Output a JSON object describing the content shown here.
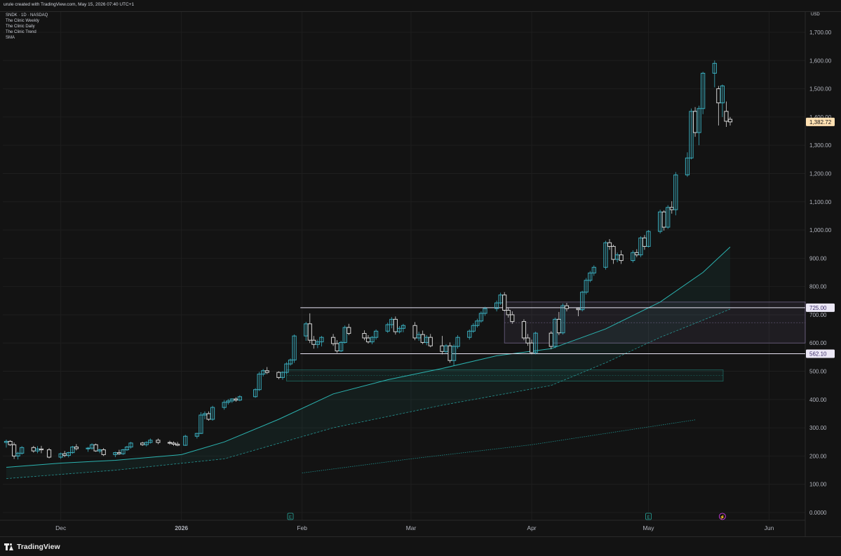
{
  "header": {
    "created_by": "urule created with TradingView.com, May 15, 2026 07:40 UTC+1"
  },
  "legend": {
    "symbol": "SNDK · 1D · NASDAQ",
    "indicators": [
      "The Clinic Weekly",
      "The Clinic Daily",
      "The Clinic Trend",
      "SMA"
    ]
  },
  "price_axis": {
    "currency": "USD",
    "labels": [
      "1,700.00",
      "1,600.00",
      "1,500.00",
      "1,400.00",
      "1,300.00",
      "1,200.00",
      "1,100.00",
      "1,000.00",
      "900.00",
      "800.00",
      "700.00",
      "600.00",
      "500.00",
      "400.00",
      "300.00",
      "200.00",
      "100.00",
      "0.0000"
    ]
  },
  "price_tags": {
    "last": "1,382.72",
    "resistance": "725.00",
    "support": "562.10"
  },
  "time_axis": {
    "labels": [
      "Dec",
      "2026",
      "Feb",
      "Mar",
      "Apr",
      "May",
      "Jun"
    ]
  },
  "event_markers": [
    "E",
    "E",
    "⚡"
  ],
  "footer": {
    "brand": "TradingView"
  },
  "colors": {
    "background": "#131313",
    "up_candle": "#3aaebf",
    "down_candle": "#d7d7d7",
    "sma_fast": "#2bb3b0",
    "sma_slow": "#1f8f8c",
    "zone_purple": "#b39ddb",
    "zone_teal": "#26a69a",
    "last_price_tag": "#ffe0b2"
  },
  "chart_data": {
    "type": "candlestick",
    "symbol": "SNDK",
    "interval": "1D",
    "x_range": [
      "2025-11-17",
      "2026-06-05"
    ],
    "ylim": [
      0,
      1750
    ],
    "y_scale": "linear",
    "grid": true,
    "candles": [
      {
        "date": "2025-11-17",
        "o": 248,
        "h": 258,
        "l": 230,
        "c": 252
      },
      {
        "date": "2025-11-18",
        "o": 252,
        "h": 256,
        "l": 236,
        "c": 240
      },
      {
        "date": "2025-11-19",
        "o": 240,
        "h": 248,
        "l": 190,
        "c": 200
      },
      {
        "date": "2025-11-20",
        "o": 200,
        "h": 215,
        "l": 188,
        "c": 210
      },
      {
        "date": "2025-11-21",
        "o": 210,
        "h": 235,
        "l": 205,
        "c": 230
      },
      {
        "date": "2025-11-24",
        "o": 230,
        "h": 236,
        "l": 212,
        "c": 218
      },
      {
        "date": "2025-11-25",
        "o": 218,
        "h": 235,
        "l": 210,
        "c": 225
      },
      {
        "date": "2025-11-26",
        "o": 225,
        "h": 236,
        "l": 210,
        "c": 222
      },
      {
        "date": "2025-11-28",
        "o": 222,
        "h": 228,
        "l": 192,
        "c": 196
      },
      {
        "date": "2025-12-01",
        "o": 196,
        "h": 212,
        "l": 190,
        "c": 208
      },
      {
        "date": "2025-12-02",
        "o": 208,
        "h": 218,
        "l": 196,
        "c": 202
      },
      {
        "date": "2025-12-03",
        "o": 202,
        "h": 215,
        "l": 195,
        "c": 212
      },
      {
        "date": "2025-12-04",
        "o": 212,
        "h": 236,
        "l": 208,
        "c": 232
      },
      {
        "date": "2025-12-05",
        "o": 232,
        "h": 242,
        "l": 220,
        "c": 226
      },
      {
        "date": "2025-12-08",
        "o": 226,
        "h": 232,
        "l": 215,
        "c": 228
      },
      {
        "date": "2025-12-09",
        "o": 228,
        "h": 245,
        "l": 222,
        "c": 240
      },
      {
        "date": "2025-12-10",
        "o": 240,
        "h": 244,
        "l": 215,
        "c": 218
      },
      {
        "date": "2025-12-11",
        "o": 218,
        "h": 226,
        "l": 210,
        "c": 222
      },
      {
        "date": "2025-12-12",
        "o": 222,
        "h": 228,
        "l": 200,
        "c": 205
      },
      {
        "date": "2025-12-15",
        "o": 205,
        "h": 215,
        "l": 196,
        "c": 212
      },
      {
        "date": "2025-12-16",
        "o": 212,
        "h": 222,
        "l": 204,
        "c": 208
      },
      {
        "date": "2025-12-17",
        "o": 208,
        "h": 225,
        "l": 204,
        "c": 222
      },
      {
        "date": "2025-12-18",
        "o": 222,
        "h": 236,
        "l": 218,
        "c": 232
      },
      {
        "date": "2025-12-19",
        "o": 232,
        "h": 250,
        "l": 226,
        "c": 246
      },
      {
        "date": "2025-12-22",
        "o": 246,
        "h": 250,
        "l": 236,
        "c": 240
      },
      {
        "date": "2025-12-23",
        "o": 240,
        "h": 252,
        "l": 234,
        "c": 248
      },
      {
        "date": "2025-12-24",
        "o": 248,
        "h": 262,
        "l": 244,
        "c": 256
      },
      {
        "date": "2025-12-26",
        "o": 256,
        "h": 262,
        "l": 242,
        "c": 248
      },
      {
        "date": "2025-12-29",
        "o": 248,
        "h": 254,
        "l": 240,
        "c": 246
      },
      {
        "date": "2025-12-30",
        "o": 246,
        "h": 252,
        "l": 236,
        "c": 242
      },
      {
        "date": "2025-12-31",
        "o": 242,
        "h": 250,
        "l": 235,
        "c": 238
      },
      {
        "date": "2026-01-02",
        "o": 238,
        "h": 275,
        "l": 236,
        "c": 270
      },
      {
        "date": "2026-01-05",
        "o": 270,
        "h": 282,
        "l": 262,
        "c": 280
      },
      {
        "date": "2026-01-06",
        "o": 280,
        "h": 355,
        "l": 278,
        "c": 345
      },
      {
        "date": "2026-01-07",
        "o": 345,
        "h": 358,
        "l": 330,
        "c": 350
      },
      {
        "date": "2026-01-08",
        "o": 350,
        "h": 358,
        "l": 325,
        "c": 330
      },
      {
        "date": "2026-01-09",
        "o": 330,
        "h": 378,
        "l": 325,
        "c": 372
      },
      {
        "date": "2026-01-12",
        "o": 372,
        "h": 398,
        "l": 364,
        "c": 390
      },
      {
        "date": "2026-01-13",
        "o": 390,
        "h": 402,
        "l": 382,
        "c": 395
      },
      {
        "date": "2026-01-14",
        "o": 395,
        "h": 404,
        "l": 388,
        "c": 402
      },
      {
        "date": "2026-01-15",
        "o": 402,
        "h": 408,
        "l": 392,
        "c": 398
      },
      {
        "date": "2026-01-16",
        "o": 398,
        "h": 415,
        "l": 394,
        "c": 410
      },
      {
        "date": "2026-01-20",
        "o": 410,
        "h": 440,
        "l": 406,
        "c": 435
      },
      {
        "date": "2026-01-21",
        "o": 435,
        "h": 498,
        "l": 430,
        "c": 490
      },
      {
        "date": "2026-01-22",
        "o": 490,
        "h": 508,
        "l": 482,
        "c": 502
      },
      {
        "date": "2026-01-23",
        "o": 502,
        "h": 515,
        "l": 490,
        "c": 496
      },
      {
        "date": "2026-01-26",
        "o": 496,
        "h": 500,
        "l": 472,
        "c": 478
      },
      {
        "date": "2026-01-27",
        "o": 478,
        "h": 500,
        "l": 470,
        "c": 496
      },
      {
        "date": "2026-01-28",
        "o": 496,
        "h": 532,
        "l": 490,
        "c": 526
      },
      {
        "date": "2026-01-29",
        "o": 526,
        "h": 545,
        "l": 520,
        "c": 540
      },
      {
        "date": "2026-01-30",
        "o": 540,
        "h": 630,
        "l": 530,
        "c": 625
      },
      {
        "date": "2026-02-02",
        "o": 625,
        "h": 675,
        "l": 608,
        "c": 668
      },
      {
        "date": "2026-02-03",
        "o": 668,
        "h": 705,
        "l": 600,
        "c": 610
      },
      {
        "date": "2026-02-04",
        "o": 610,
        "h": 625,
        "l": 580,
        "c": 595
      },
      {
        "date": "2026-02-05",
        "o": 595,
        "h": 612,
        "l": 582,
        "c": 604
      },
      {
        "date": "2026-02-06",
        "o": 604,
        "h": 625,
        "l": 588,
        "c": 620
      },
      {
        "date": "2026-02-09",
        "o": 620,
        "h": 632,
        "l": 590,
        "c": 598
      },
      {
        "date": "2026-02-10",
        "o": 598,
        "h": 610,
        "l": 565,
        "c": 572
      },
      {
        "date": "2026-02-11",
        "o": 572,
        "h": 608,
        "l": 568,
        "c": 602
      },
      {
        "date": "2026-02-12",
        "o": 602,
        "h": 662,
        "l": 598,
        "c": 655
      },
      {
        "date": "2026-02-13",
        "o": 655,
        "h": 668,
        "l": 628,
        "c": 634
      },
      {
        "date": "2026-02-17",
        "o": 634,
        "h": 645,
        "l": 610,
        "c": 618
      },
      {
        "date": "2026-02-18",
        "o": 618,
        "h": 628,
        "l": 598,
        "c": 604
      },
      {
        "date": "2026-02-19",
        "o": 604,
        "h": 625,
        "l": 596,
        "c": 620
      },
      {
        "date": "2026-02-20",
        "o": 620,
        "h": 648,
        "l": 612,
        "c": 642
      },
      {
        "date": "2026-02-23",
        "o": 642,
        "h": 672,
        "l": 636,
        "c": 665
      },
      {
        "date": "2026-02-24",
        "o": 665,
        "h": 692,
        "l": 652,
        "c": 684
      },
      {
        "date": "2026-02-25",
        "o": 684,
        "h": 694,
        "l": 630,
        "c": 640
      },
      {
        "date": "2026-02-26",
        "o": 640,
        "h": 660,
        "l": 634,
        "c": 652
      },
      {
        "date": "2026-02-27",
        "o": 652,
        "h": 668,
        "l": 638,
        "c": 662
      },
      {
        "date": "2026-03-02",
        "o": 662,
        "h": 674,
        "l": 610,
        "c": 618
      },
      {
        "date": "2026-03-03",
        "o": 618,
        "h": 640,
        "l": 608,
        "c": 630
      },
      {
        "date": "2026-03-04",
        "o": 630,
        "h": 644,
        "l": 596,
        "c": 602
      },
      {
        "date": "2026-03-05",
        "o": 602,
        "h": 628,
        "l": 592,
        "c": 620
      },
      {
        "date": "2026-03-06",
        "o": 620,
        "h": 632,
        "l": 585,
        "c": 590
      },
      {
        "date": "2026-03-09",
        "o": 590,
        "h": 625,
        "l": 560,
        "c": 570
      },
      {
        "date": "2026-03-10",
        "o": 570,
        "h": 596,
        "l": 562,
        "c": 590
      },
      {
        "date": "2026-03-11",
        "o": 590,
        "h": 602,
        "l": 530,
        "c": 538
      },
      {
        "date": "2026-03-12",
        "o": 538,
        "h": 595,
        "l": 520,
        "c": 588
      },
      {
        "date": "2026-03-13",
        "o": 588,
        "h": 628,
        "l": 580,
        "c": 620
      },
      {
        "date": "2026-03-16",
        "o": 620,
        "h": 648,
        "l": 612,
        "c": 642
      },
      {
        "date": "2026-03-17",
        "o": 642,
        "h": 670,
        "l": 636,
        "c": 662
      },
      {
        "date": "2026-03-18",
        "o": 662,
        "h": 686,
        "l": 655,
        "c": 678
      },
      {
        "date": "2026-03-19",
        "o": 678,
        "h": 712,
        "l": 672,
        "c": 705
      },
      {
        "date": "2026-03-20",
        "o": 705,
        "h": 728,
        "l": 696,
        "c": 722
      },
      {
        "date": "2026-03-23",
        "o": 722,
        "h": 750,
        "l": 712,
        "c": 742
      },
      {
        "date": "2026-03-24",
        "o": 742,
        "h": 778,
        "l": 735,
        "c": 770
      },
      {
        "date": "2026-03-25",
        "o": 770,
        "h": 780,
        "l": 712,
        "c": 716
      },
      {
        "date": "2026-03-26",
        "o": 716,
        "h": 726,
        "l": 690,
        "c": 700
      },
      {
        "date": "2026-03-27",
        "o": 700,
        "h": 712,
        "l": 668,
        "c": 676
      },
      {
        "date": "2026-03-30",
        "o": 676,
        "h": 684,
        "l": 610,
        "c": 618
      },
      {
        "date": "2026-03-31",
        "o": 618,
        "h": 632,
        "l": 590,
        "c": 600
      },
      {
        "date": "2026-04-01",
        "o": 600,
        "h": 612,
        "l": 560,
        "c": 566
      },
      {
        "date": "2026-04-02",
        "o": 566,
        "h": 640,
        "l": 560,
        "c": 635
      },
      {
        "date": "2026-04-06",
        "o": 635,
        "h": 642,
        "l": 578,
        "c": 588
      },
      {
        "date": "2026-04-07",
        "o": 588,
        "h": 690,
        "l": 582,
        "c": 684
      },
      {
        "date": "2026-04-08",
        "o": 684,
        "h": 710,
        "l": 628,
        "c": 636
      },
      {
        "date": "2026-04-09",
        "o": 636,
        "h": 740,
        "l": 630,
        "c": 732
      },
      {
        "date": "2026-04-10",
        "o": 732,
        "h": 742,
        "l": 712,
        "c": 722
      },
      {
        "date": "2026-04-13",
        "o": 722,
        "h": 726,
        "l": 695,
        "c": 718
      },
      {
        "date": "2026-04-14",
        "o": 718,
        "h": 785,
        "l": 712,
        "c": 780
      },
      {
        "date": "2026-04-15",
        "o": 780,
        "h": 830,
        "l": 772,
        "c": 822
      },
      {
        "date": "2026-04-16",
        "o": 822,
        "h": 855,
        "l": 815,
        "c": 848
      },
      {
        "date": "2026-04-17",
        "o": 848,
        "h": 875,
        "l": 838,
        "c": 868
      },
      {
        "date": "2026-04-20",
        "o": 868,
        "h": 962,
        "l": 860,
        "c": 955
      },
      {
        "date": "2026-04-21",
        "o": 955,
        "h": 968,
        "l": 930,
        "c": 942
      },
      {
        "date": "2026-04-22",
        "o": 942,
        "h": 948,
        "l": 880,
        "c": 896
      },
      {
        "date": "2026-04-23",
        "o": 896,
        "h": 920,
        "l": 886,
        "c": 912
      },
      {
        "date": "2026-04-24",
        "o": 912,
        "h": 928,
        "l": 880,
        "c": 892
      },
      {
        "date": "2026-04-27",
        "o": 892,
        "h": 928,
        "l": 885,
        "c": 920
      },
      {
        "date": "2026-04-28",
        "o": 920,
        "h": 932,
        "l": 904,
        "c": 912
      },
      {
        "date": "2026-04-29",
        "o": 912,
        "h": 978,
        "l": 904,
        "c": 972
      },
      {
        "date": "2026-04-30",
        "o": 972,
        "h": 982,
        "l": 930,
        "c": 942
      },
      {
        "date": "2026-05-01",
        "o": 942,
        "h": 1000,
        "l": 938,
        "c": 995
      },
      {
        "date": "2026-05-04",
        "o": 995,
        "h": 1072,
        "l": 988,
        "c": 1064
      },
      {
        "date": "2026-05-05",
        "o": 1064,
        "h": 1070,
        "l": 998,
        "c": 1010
      },
      {
        "date": "2026-05-06",
        "o": 1010,
        "h": 1088,
        "l": 1004,
        "c": 1080
      },
      {
        "date": "2026-05-07",
        "o": 1080,
        "h": 1102,
        "l": 1058,
        "c": 1072
      },
      {
        "date": "2026-05-08",
        "o": 1072,
        "h": 1205,
        "l": 1052,
        "c": 1195
      },
      {
        "date": "2026-05-11",
        "o": 1195,
        "h": 1275,
        "l": 1188,
        "c": 1255
      },
      {
        "date": "2026-05-12",
        "o": 1255,
        "h": 1430,
        "l": 1250,
        "c": 1420
      },
      {
        "date": "2026-05-13",
        "o": 1420,
        "h": 1435,
        "l": 1330,
        "c": 1345
      },
      {
        "date": "2026-05-14",
        "o": 1345,
        "h": 1440,
        "l": 1300,
        "c": 1430
      },
      {
        "date": "2026-05-15",
        "o": 1430,
        "h": 1560,
        "l": 1410,
        "c": 1555
      },
      {
        "date": "2026-05-18",
        "o": 1555,
        "h": 1600,
        "l": 1505,
        "c": 1590
      },
      {
        "date": "2026-05-19",
        "o": 1500,
        "h": 1510,
        "l": 1370,
        "c": 1450
      },
      {
        "date": "2026-05-20",
        "o": 1450,
        "h": 1515,
        "l": 1400,
        "c": 1510
      },
      {
        "date": "2026-05-21",
        "o": 1420,
        "h": 1455,
        "l": 1365,
        "c": 1385
      },
      {
        "date": "2026-05-22",
        "o": 1392,
        "h": 1400,
        "l": 1370,
        "c": 1382.72
      }
    ],
    "sma_fast": [
      {
        "date": "2025-11-17",
        "v": 160
      },
      {
        "date": "2025-12-01",
        "v": 175
      },
      {
        "date": "2025-12-15",
        "v": 185
      },
      {
        "date": "2026-01-01",
        "v": 205
      },
      {
        "date": "2026-01-12",
        "v": 250
      },
      {
        "date": "2026-01-26",
        "v": 330
      },
      {
        "date": "2026-02-09",
        "v": 420
      },
      {
        "date": "2026-02-23",
        "v": 470
      },
      {
        "date": "2026-03-09",
        "v": 510
      },
      {
        "date": "2026-03-23",
        "v": 555
      },
      {
        "date": "2026-04-06",
        "v": 580
      },
      {
        "date": "2026-04-20",
        "v": 650
      },
      {
        "date": "2026-05-04",
        "v": 745
      },
      {
        "date": "2026-05-15",
        "v": 850
      },
      {
        "date": "2026-05-22",
        "v": 940
      }
    ],
    "sma_slow": [
      {
        "date": "2025-11-17",
        "v": 120
      },
      {
        "date": "2025-12-15",
        "v": 150
      },
      {
        "date": "2026-01-12",
        "v": 190
      },
      {
        "date": "2026-02-09",
        "v": 300
      },
      {
        "date": "2026-03-09",
        "v": 380
      },
      {
        "date": "2026-04-06",
        "v": 450
      },
      {
        "date": "2026-04-20",
        "v": 530
      },
      {
        "date": "2026-05-04",
        "v": 620
      },
      {
        "date": "2026-05-22",
        "v": 720
      }
    ],
    "sma_long": [
      {
        "date": "2026-02-01",
        "v": 140
      },
      {
        "date": "2026-03-01",
        "v": 190
      },
      {
        "date": "2026-04-01",
        "v": 240
      },
      {
        "date": "2026-04-20",
        "v": 280
      },
      {
        "date": "2026-05-13",
        "v": 328
      }
    ],
    "levels": [
      {
        "price": 725.0,
        "from": "2026-02-02",
        "color": "#b39ddb"
      },
      {
        "price": 562.1,
        "from": "2026-02-02",
        "color": "#b39ddb"
      }
    ],
    "zones": [
      {
        "top": 745,
        "bottom": 600,
        "from": "2026-03-25",
        "mid": 672,
        "color": "#b39ddb"
      },
      {
        "top": 505,
        "bottom": 465,
        "from": "2026-01-28",
        "mid": 485,
        "color": "#26a69a"
      }
    ],
    "cloud": {
      "upper": "sma_fast",
      "lower": "sma_slow",
      "color": "#26a69a"
    }
  }
}
